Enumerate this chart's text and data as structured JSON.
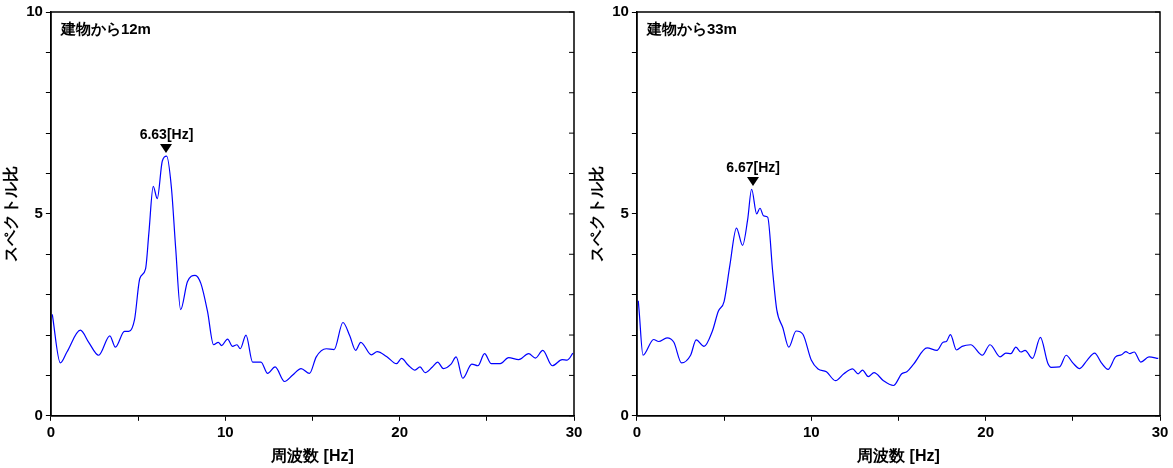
{
  "chart_data": [
    {
      "type": "line",
      "xlabel": "周波数 [Hz]",
      "ylabel": "スペクトル比",
      "xlim": [
        0,
        30
      ],
      "ylim": [
        0,
        10
      ],
      "xticks": [
        0,
        {
          "value": 5,
          "label": null
        },
        10,
        {
          "value": 15,
          "label": null
        },
        20,
        {
          "value": 25,
          "label": null
        },
        30
      ],
      "yticks": [
        0,
        {
          "value": 1,
          "label": null
        },
        {
          "value": 2,
          "label": null
        },
        {
          "value": 3,
          "label": null
        },
        {
          "value": 4,
          "label": null
        },
        5,
        {
          "value": 6,
          "label": null
        },
        {
          "value": 7,
          "label": null
        },
        {
          "value": 8,
          "label": null
        },
        {
          "value": 9,
          "label": null
        },
        10
      ],
      "grid": false,
      "legend": false,
      "marker": "none",
      "line_style": "solid",
      "annotations": [
        "建物から12m",
        {
          "text": "6.63[Hz]",
          "x": 6.63,
          "y": 6.45
        }
      ],
      "series": [
        {
          "color": "#0000ff",
          "x": [
            0.08,
            0.54,
            0.92,
            1.69,
            2.17,
            2.74,
            3.38,
            3.7,
            4.22,
            4.47,
            4.8,
            5.1,
            5.43,
            5.62,
            5.87,
            6.1,
            6.39,
            6.64,
            6.91,
            7.16,
            7.44,
            7.83,
            8.27,
            8.6,
            8.98,
            9.33,
            9.6,
            9.79,
            10.13,
            10.42,
            10.67,
            10.86,
            11.19,
            11.57,
            12.05,
            12.43,
            12.86,
            13.4,
            13.87,
            14.35,
            14.83,
            15.22,
            15.79,
            16.24,
            16.75,
            17.14,
            17.48,
            17.77,
            18.38,
            18.71,
            19.25,
            19.82,
            20.11,
            20.5,
            20.88,
            21.17,
            21.46,
            21.88,
            22.18,
            22.51,
            22.95,
            23.24,
            23.62,
            24.14,
            24.49,
            24.87,
            25.26,
            25.77,
            26.25,
            26.83,
            27.4,
            27.79,
            28.21,
            28.75,
            29.32,
            29.61,
            29.94
          ],
          "values": [
            2.51,
            1.31,
            1.58,
            2.12,
            1.82,
            1.5,
            1.98,
            1.7,
            2.09,
            2.09,
            2.39,
            3.4,
            3.64,
            4.53,
            5.68,
            5.38,
            6.31,
            6.43,
            5.66,
            4.13,
            2.63,
            3.32,
            3.48,
            3.28,
            2.59,
            1.76,
            1.82,
            1.74,
            1.9,
            1.72,
            1.76,
            1.66,
            2,
            1.33,
            1.33,
            1.05,
            1.21,
            0.85,
            1.01,
            1.17,
            1.05,
            1.46,
            1.66,
            1.64,
            2.31,
            1.98,
            1.62,
            1.82,
            1.51,
            1.59,
            1.47,
            1.29,
            1.42,
            1.25,
            1.13,
            1.21,
            1.07,
            1.21,
            1.33,
            1.17,
            1.28,
            1.46,
            0.93,
            1.28,
            1.24,
            1.54,
            1.29,
            1.29,
            1.44,
            1.39,
            1.54,
            1.43,
            1.62,
            1.24,
            1.39,
            1.38,
            1.55
          ]
        }
      ]
    },
    {
      "type": "line",
      "xlabel": "周波数 [Hz]",
      "ylabel": "スペクトル比",
      "xlim": [
        0,
        30
      ],
      "ylim": [
        0,
        10
      ],
      "xticks": [
        0,
        {
          "value": 5,
          "label": null
        },
        10,
        {
          "value": 15,
          "label": null
        },
        20,
        {
          "value": 25,
          "label": null
        },
        30
      ],
      "yticks": [
        0,
        {
          "value": 1,
          "label": null
        },
        {
          "value": 2,
          "label": null
        },
        {
          "value": 3,
          "label": null
        },
        {
          "value": 4,
          "label": null
        },
        5,
        {
          "value": 6,
          "label": null
        },
        {
          "value": 7,
          "label": null
        },
        {
          "value": 8,
          "label": null
        },
        {
          "value": 9,
          "label": null
        },
        10
      ],
      "grid": false,
      "legend": false,
      "marker": "none",
      "line_style": "solid",
      "annotations": [
        "建物から33m",
        {
          "text": "6.67[Hz]",
          "x": 6.67,
          "y": 5.63
        }
      ],
      "series": [
        {
          "color": "#0000ff",
          "x": [
            0.08,
            0.13,
            0.35,
            0.96,
            1.25,
            1.73,
            2.12,
            2.56,
            3.08,
            3.4,
            3.85,
            4.33,
            4.67,
            5,
            5.33,
            5.71,
            6.06,
            6.35,
            6.58,
            6.87,
            7.06,
            7.27,
            7.5,
            7.79,
            8.02,
            8.37,
            8.71,
            9.13,
            9.52,
            10,
            10.39,
            10.87,
            11.39,
            11.87,
            12.37,
            12.69,
            12.94,
            13.27,
            13.6,
            14.14,
            14.71,
            15.19,
            15.48,
            15.87,
            16.64,
            17.21,
            17.56,
            17.75,
            17.98,
            18.33,
            18.65,
            19.14,
            19.81,
            20.25,
            20.83,
            21.16,
            21.45,
            21.73,
            22.02,
            22.26,
            22.69,
            23.14,
            23.56,
            23.76,
            24.24,
            24.62,
            25,
            25.39,
            25.83,
            26.25,
            26.64,
            27.02,
            27.45,
            27.79,
            28.04,
            28.27,
            28.52,
            28.9,
            29.37,
            29.9
          ],
          "values": [
            2.85,
            2.59,
            1.5,
            1.89,
            1.84,
            1.93,
            1.82,
            1.31,
            1.5,
            1.88,
            1.72,
            2.1,
            2.59,
            2.83,
            3.72,
            4.65,
            4.22,
            4.85,
            5.61,
            5,
            5.14,
            4.95,
            4.92,
            3.56,
            2.63,
            2.18,
            1.7,
            2.1,
            2.02,
            1.38,
            1.16,
            1.09,
            0.87,
            1.04,
            1.16,
            1.04,
            1.13,
            0.97,
            1.07,
            0.87,
            0.75,
            1.04,
            1.09,
            1.28,
            1.68,
            1.62,
            1.82,
            1.84,
            2.01,
            1.63,
            1.72,
            1.76,
            1.5,
            1.76,
            1.46,
            1.55,
            1.54,
            1.7,
            1.58,
            1.62,
            1.42,
            1.94,
            1.31,
            1.2,
            1.21,
            1.5,
            1.31,
            1.17,
            1.38,
            1.55,
            1.31,
            1.15,
            1.46,
            1.51,
            1.59,
            1.54,
            1.58,
            1.33,
            1.46,
            1.42
          ]
        }
      ]
    }
  ]
}
